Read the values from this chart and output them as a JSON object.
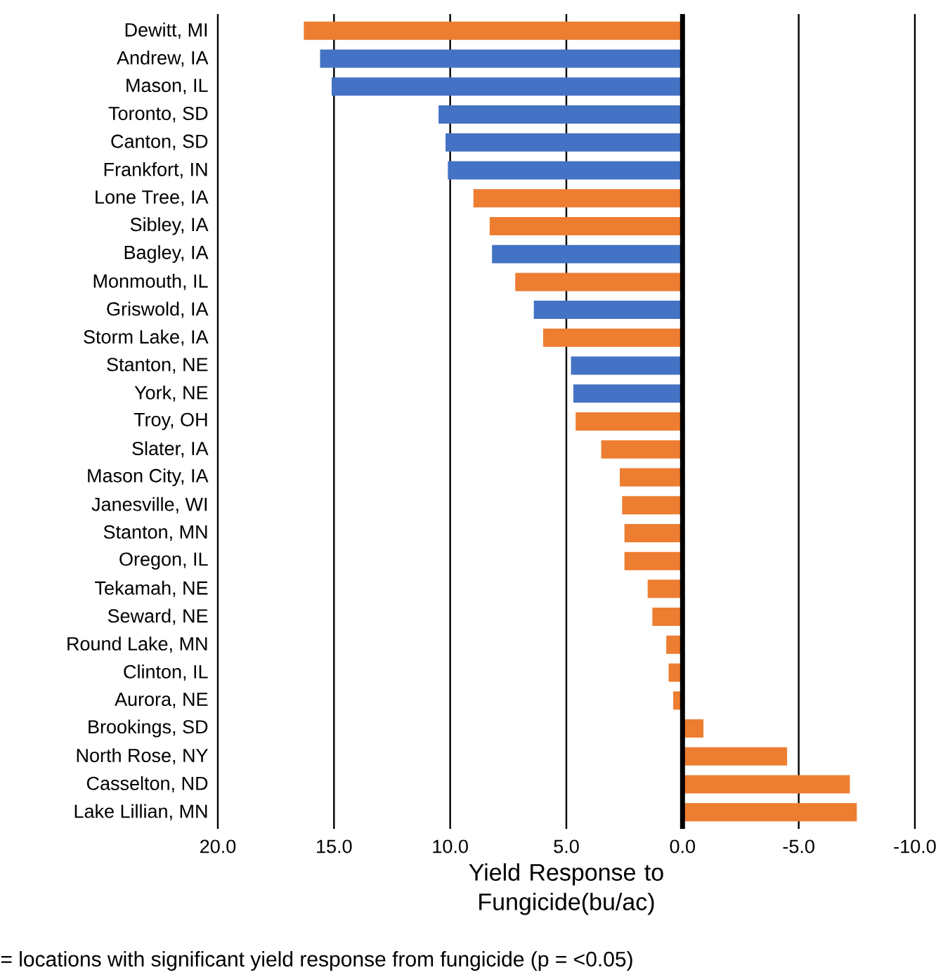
{
  "chart_data": {
    "type": "bar",
    "orientation": "horizontal",
    "xlabel": "Yield  Response to Fungicide(bu/ac)",
    "categories": [
      "Dewitt, MI",
      "Andrew, IA",
      "Mason, IL",
      "Toronto, SD",
      "Canton, SD",
      "Frankfort, IN",
      "Lone Tree, IA",
      "Sibley, IA",
      "Bagley, IA",
      "Monmouth, IL",
      "Griswold, IA",
      "Storm Lake, IA",
      "Stanton, NE",
      "York, NE",
      "Troy, OH",
      "Slater, IA",
      "Mason City, IA",
      "Janesville, WI",
      "Stanton, MN",
      "Oregon, IL",
      "Tekamah, NE",
      "Seward, NE",
      "Round Lake, MN",
      "Clinton, IL",
      "Aurora, NE",
      "Brookings, SD",
      "North Rose, NY",
      "Casselton, ND",
      "Lake Lillian, MN"
    ],
    "values": [
      16.3,
      15.6,
      15.1,
      10.5,
      10.2,
      10.1,
      9.0,
      8.3,
      8.2,
      7.2,
      6.4,
      6.0,
      4.8,
      4.7,
      4.6,
      3.5,
      2.7,
      2.6,
      2.5,
      2.5,
      1.5,
      1.3,
      0.7,
      0.6,
      0.4,
      -0.9,
      -4.5,
      -7.2,
      -7.5
    ],
    "colors": [
      "#ed7d31",
      "#4472c4",
      "#4472c4",
      "#4472c4",
      "#4472c4",
      "#4472c4",
      "#ed7d31",
      "#ed7d31",
      "#4472c4",
      "#ed7d31",
      "#4472c4",
      "#ed7d31",
      "#4472c4",
      "#4472c4",
      "#ed7d31",
      "#ed7d31",
      "#ed7d31",
      "#ed7d31",
      "#ed7d31",
      "#ed7d31",
      "#ed7d31",
      "#ed7d31",
      "#ed7d31",
      "#ed7d31",
      "#ed7d31",
      "#ed7d31",
      "#ed7d31",
      "#ed7d31",
      "#ed7d31"
    ],
    "xlim": [
      20,
      -10
    ],
    "xticks": [
      {
        "value": 20,
        "label": "20.0"
      },
      {
        "value": 15,
        "label": "15.0"
      },
      {
        "value": 10,
        "label": "10.0"
      },
      {
        "value": 5,
        "label": "5.0"
      },
      {
        "value": 0,
        "label": "0.0"
      },
      {
        "value": -5,
        "label": "-5.0"
      },
      {
        "value": -10,
        "label": "-10.0"
      }
    ],
    "grid": "x",
    "annotations": [
      "= locations with significant yield response from fungicide (p = <0.05)"
    ]
  }
}
